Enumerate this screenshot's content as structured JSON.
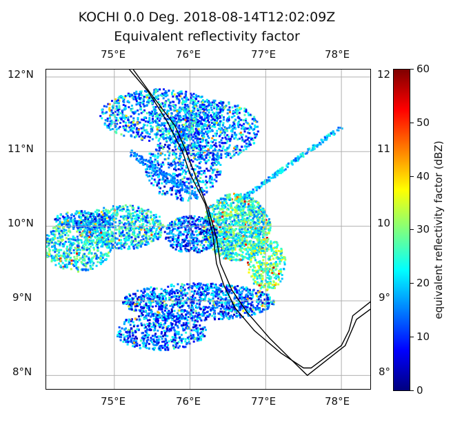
{
  "title": "KOCHI 0.0 Deg. 2018-08-14T12:02:09Z",
  "subtitle": "Equivalent reflectivity factor",
  "lon_ticks": [
    "75°E",
    "76°E",
    "77°E",
    "78°E"
  ],
  "lat_ticks": [
    "12°N",
    "11°N",
    "10°N",
    "9°N",
    "8°N"
  ],
  "right_lat_ticks": [
    "12",
    "11",
    "10",
    "9°",
    "8°"
  ],
  "colorbar": {
    "label": "equivalent reflectivity factor (dBZ)",
    "ticks": [
      "0",
      "10",
      "20",
      "30",
      "40",
      "50",
      "60"
    ],
    "range": [
      0,
      60
    ],
    "colormap": "jet",
    "colors": [
      "#00007f",
      "#0000ff",
      "#007fff",
      "#00ffff",
      "#7fff7f",
      "#ffff00",
      "#ff7f00",
      "#ff0000",
      "#7f0000"
    ]
  },
  "map": {
    "lon_range": [
      74.1,
      78.4
    ],
    "lat_range": [
      7.8,
      12.1
    ],
    "gridlines": true,
    "coastline_color": "#000000"
  }
}
